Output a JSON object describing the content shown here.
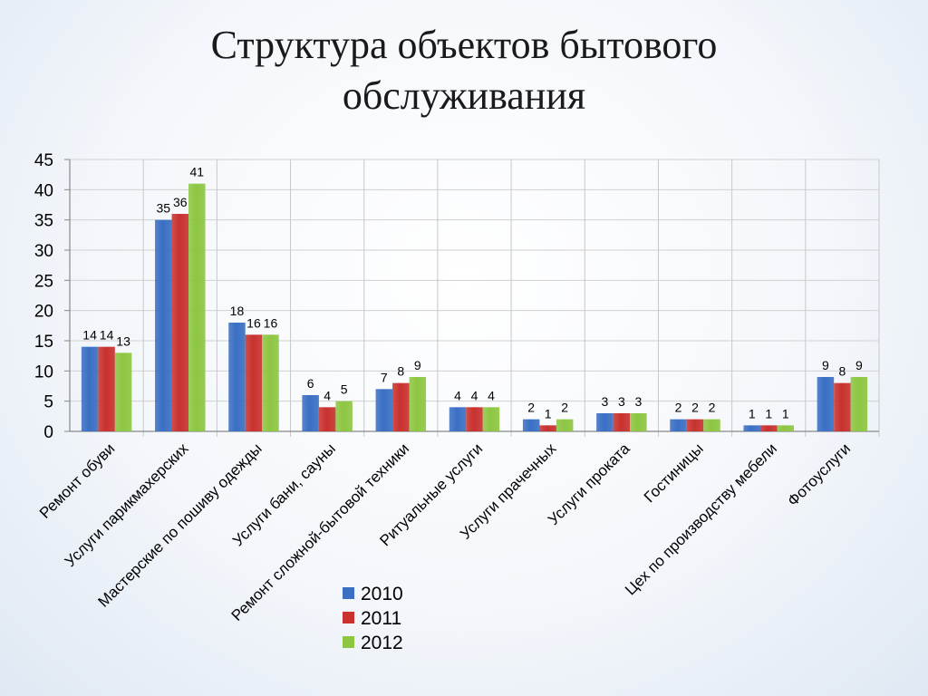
{
  "slide": {
    "title_line1": "Структура объектов бытового",
    "title_line2": "обслуживания"
  },
  "chart_data": {
    "type": "bar",
    "categories": [
      "Ремонт обуви",
      "Услуги парикмахерских",
      "Мастерские по пошиву  одежды",
      "Услуги бани, сауны",
      "Ремонт сложной-бытовой техники",
      "Ритуальные услуги",
      "Услуги прачечных",
      "Услуги проката",
      "Гостиницы",
      "Цех по производству мебели",
      "Фотоуслуги"
    ],
    "series": [
      {
        "name": "2010",
        "color": "#3a6fc4",
        "values": [
          14,
          35,
          18,
          6,
          7,
          4,
          2,
          3,
          2,
          1,
          9
        ]
      },
      {
        "name": "2011",
        "color": "#c8312e",
        "values": [
          14,
          36,
          16,
          4,
          8,
          4,
          1,
          3,
          2,
          1,
          8
        ]
      },
      {
        "name": "2012",
        "color": "#8dc641",
        "values": [
          13,
          41,
          16,
          5,
          9,
          4,
          2,
          3,
          2,
          1,
          9
        ]
      }
    ],
    "ylim": [
      0,
      45
    ],
    "yticks": [
      "0",
      "5",
      "10",
      "15",
      "20",
      "25",
      "30",
      "35",
      "40",
      "45"
    ],
    "grid": true,
    "legend": "bottom-center"
  }
}
